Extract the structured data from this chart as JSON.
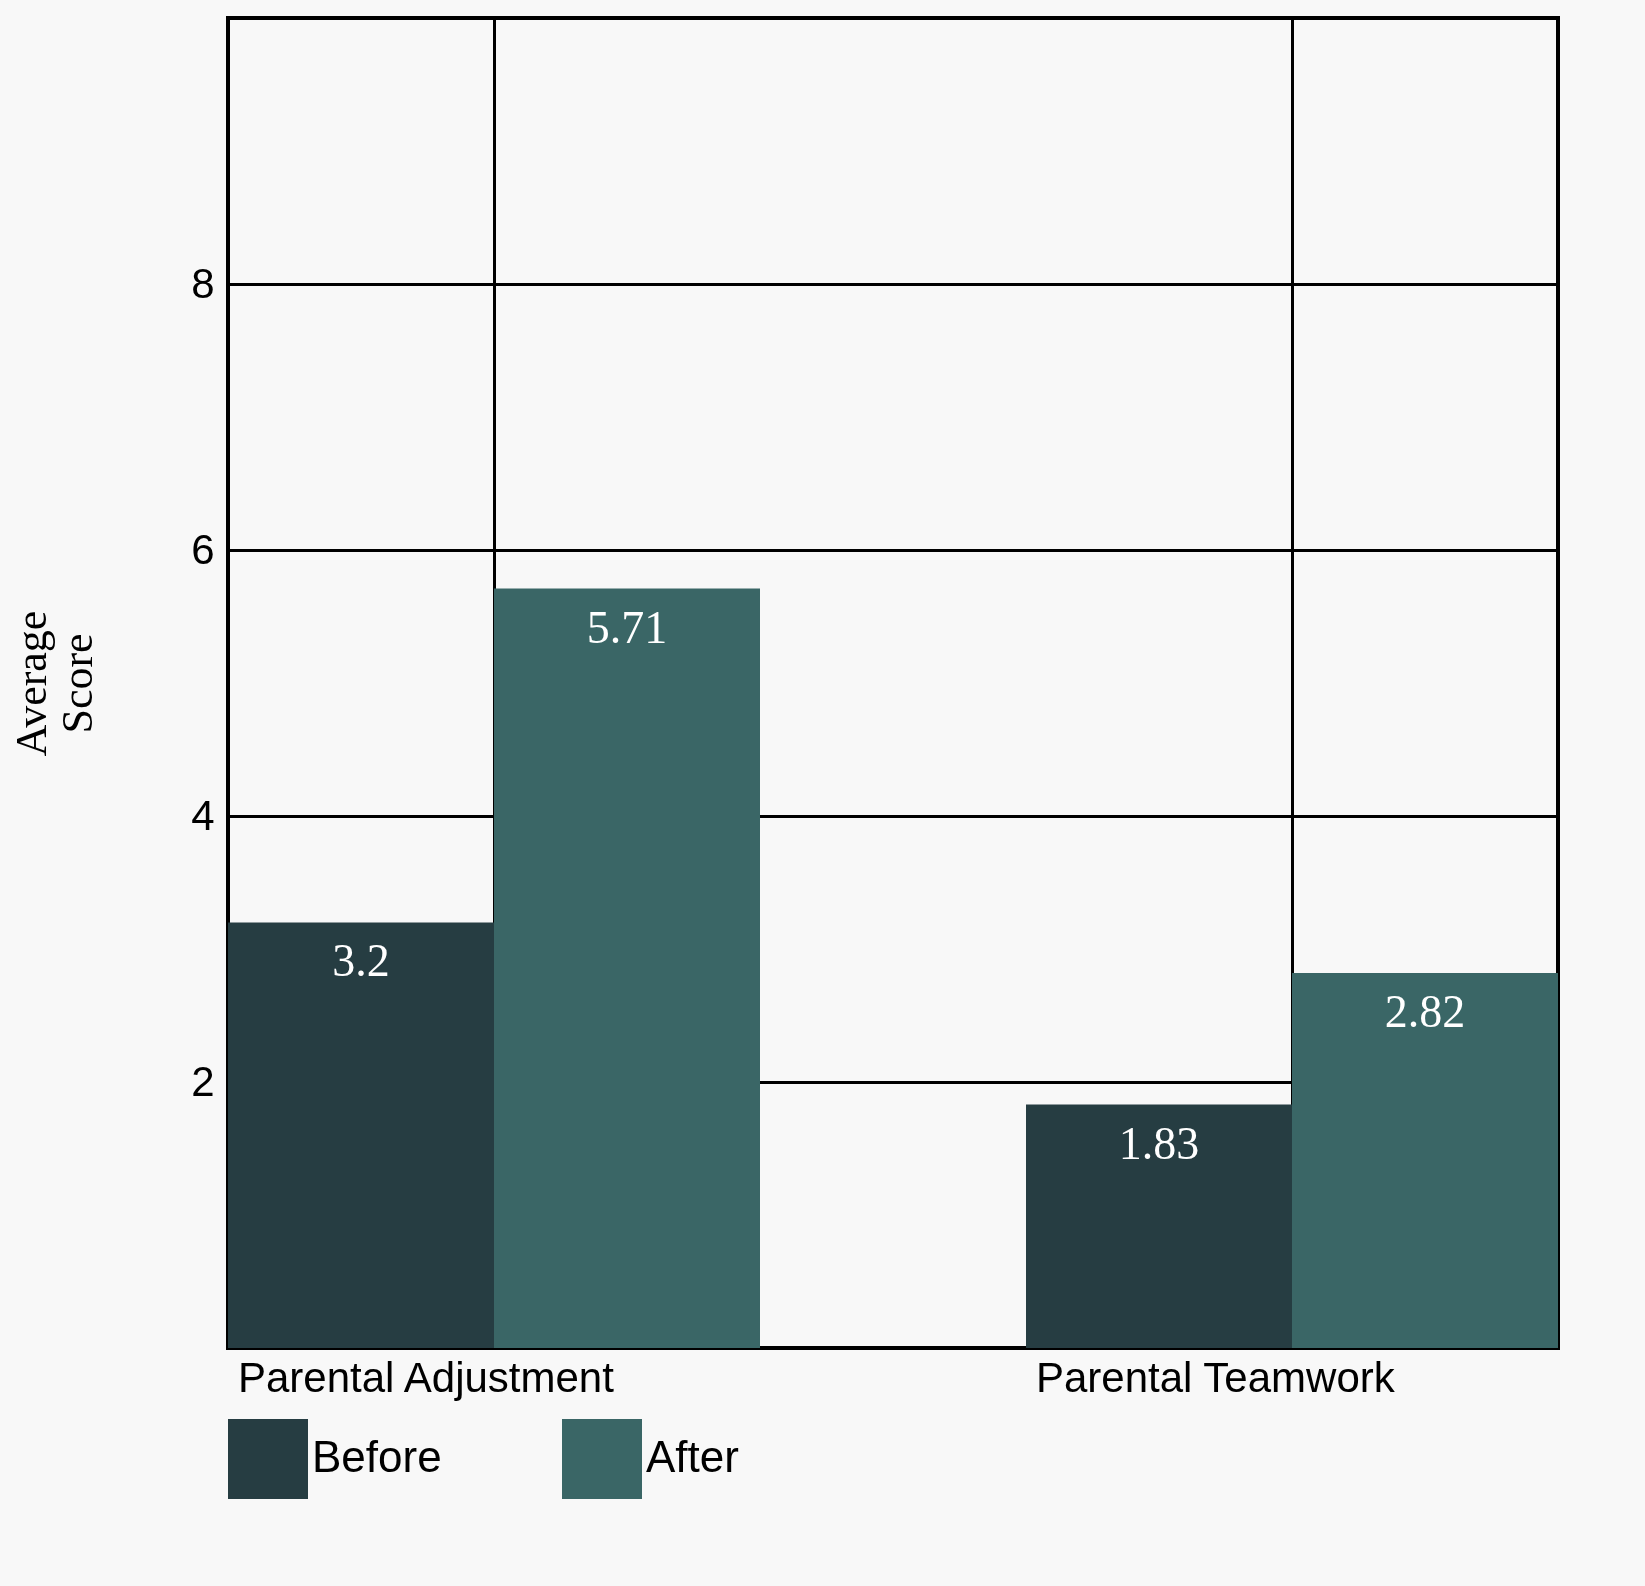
{
  "chart_data": {
    "type": "bar",
    "ylabel": "Average Score",
    "categories": [
      "Parental Adjustment",
      "Parental Teamwork"
    ],
    "series": [
      {
        "name": "Before",
        "color": "#263d42",
        "values": [
          3.2,
          1.83
        ]
      },
      {
        "name": "After",
        "color": "#3a6666",
        "values": [
          5.71,
          2.82
        ]
      }
    ],
    "ylim": [
      0,
      10
    ],
    "yticks": [
      2,
      4,
      6,
      8
    ],
    "grid": true,
    "legend": "bottom",
    "data_labels": true
  }
}
